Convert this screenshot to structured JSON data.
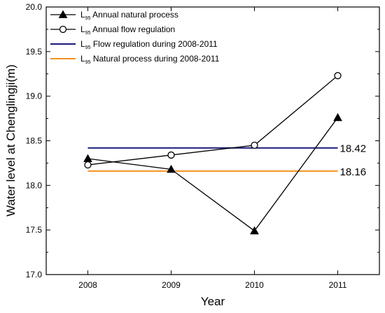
{
  "chart_data": {
    "type": "line",
    "xlabel": "Year",
    "ylabel": "Water level at Chenglingji(m)",
    "x": [
      2008,
      2009,
      2010,
      2011
    ],
    "xlim": [
      2007.5,
      2011.5
    ],
    "ylim": [
      17.0,
      20.0
    ],
    "y_ticks": [
      17.0,
      17.5,
      18.0,
      18.5,
      19.0,
      19.5,
      20.0
    ],
    "y_tick_labels": [
      "17.0",
      "17.5",
      "18.0",
      "18.5",
      "19.0",
      "19.5",
      "20.0"
    ],
    "x_tick_labels": [
      "2008",
      "2009",
      "2010",
      "2011"
    ],
    "legend_position": "top-left",
    "grid": false,
    "series": [
      {
        "name_prefix": "L",
        "name_subscript": "95",
        "name_rest": " Annual natural process",
        "marker": "filled-triangle",
        "color": "#000000",
        "values": [
          18.3,
          18.18,
          17.49,
          18.76
        ]
      },
      {
        "name_prefix": "L",
        "name_subscript": "95",
        "name_rest": " Annual flow regulation",
        "marker": "open-circle",
        "color": "#000000",
        "values": [
          18.23,
          18.34,
          18.45,
          19.23
        ]
      }
    ],
    "reference_lines": [
      {
        "name_prefix": "L",
        "name_subscript": "95",
        "name_rest": " Flow regulation during 2008-2011",
        "color": "#1a1a7a",
        "value": 18.42,
        "label": "18.42",
        "x_range": [
          2008,
          2011
        ]
      },
      {
        "name_prefix": "L",
        "name_subscript": "95",
        "name_rest": " Natural process during 2008-2011",
        "color": "#f5901e",
        "value": 18.16,
        "label": "18.16",
        "x_range": [
          2008,
          2011
        ]
      }
    ]
  }
}
